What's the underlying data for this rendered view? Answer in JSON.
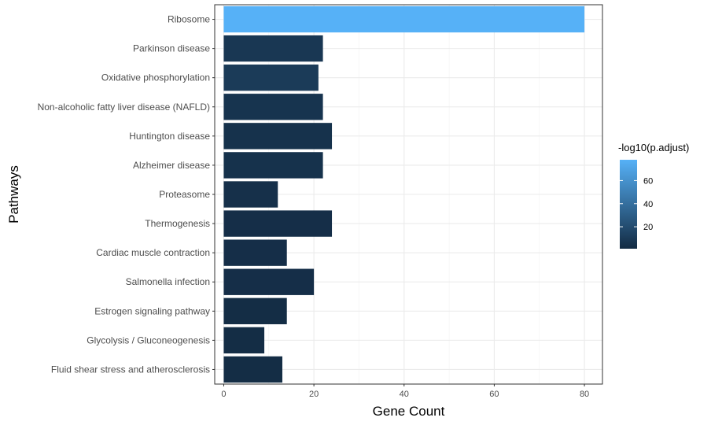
{
  "chart_data": {
    "type": "bar",
    "orientation": "horizontal",
    "xlabel": "Gene Count",
    "ylabel": "Pathways",
    "xlim": [
      -2,
      84
    ],
    "x_ticks": [
      0,
      20,
      40,
      60,
      80
    ],
    "grid": true,
    "categories": [
      "Ribosome",
      "Parkinson disease",
      "Oxidative phosphorylation",
      "Non-alcoholic fatty liver disease (NAFLD)",
      "Huntington disease",
      "Alzheimer disease",
      "Proteasome",
      "Thermogenesis",
      "Cardiac muscle contraction",
      "Salmonella infection",
      "Estrogen signaling pathway",
      "Glycolysis / Gluconeogenesis",
      "Fluid shear stress and atherosclerosis"
    ],
    "values": [
      80,
      22,
      21,
      22,
      24,
      22,
      12,
      24,
      14,
      20,
      14,
      9,
      13
    ],
    "color_values": [
      78,
      8,
      10,
      6,
      5,
      5,
      4,
      3,
      3,
      3,
      2,
      2,
      2
    ],
    "legend": {
      "title": "-log10(p.adjust)",
      "position": "right",
      "range": [
        1,
        78
      ],
      "ticks": [
        20,
        40,
        60
      ],
      "color_low": "#132B43",
      "color_high": "#56B1F7"
    }
  }
}
